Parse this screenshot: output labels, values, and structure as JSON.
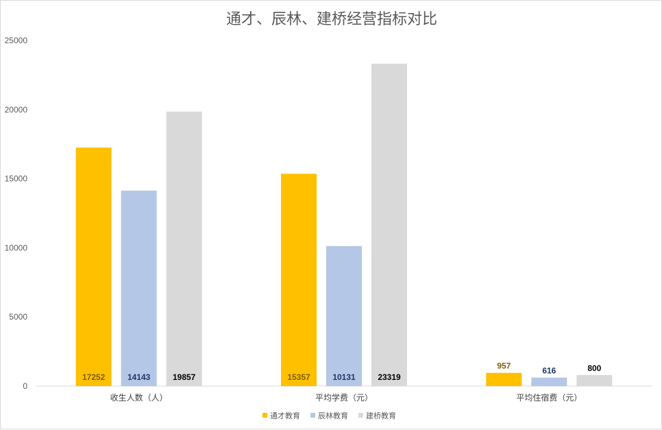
{
  "chart_data": {
    "type": "bar",
    "title": "通才、辰林、建桥经营指标对比",
    "categories": [
      "收生人数（人）",
      "平均学费（元）",
      "平均住宿费（元）"
    ],
    "series": [
      {
        "name": "通才教育",
        "color": "#ffc000",
        "label_color": "#7f6000",
        "values": [
          17252,
          15357,
          957
        ]
      },
      {
        "name": "辰林教育",
        "color": "#b4c7e7",
        "label_color": "#203864",
        "values": [
          14143,
          10131,
          616
        ]
      },
      {
        "name": "建桥教育",
        "color": "#d9d9d9",
        "label_color": "#000000",
        "values": [
          19857,
          23319,
          800
        ]
      }
    ],
    "ylim": [
      0,
      25000
    ],
    "yticks": [
      0,
      5000,
      10000,
      15000,
      20000,
      25000
    ],
    "grid": false,
    "legend": "bottom"
  }
}
